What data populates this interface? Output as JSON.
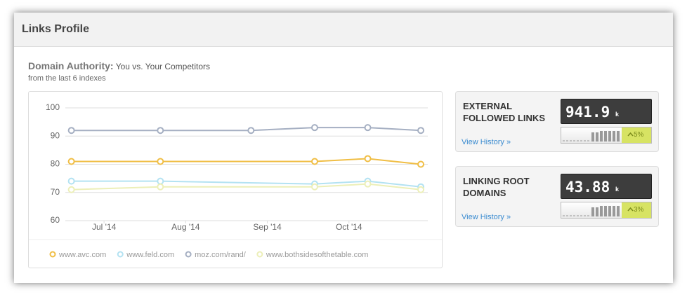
{
  "header": {
    "title": "Links Profile"
  },
  "chart_data": {
    "type": "line",
    "title": "Domain Authority:",
    "title_detail": "You vs. Your Competitors",
    "subtitle": "from the last 6 indexes",
    "xlim": [
      6.5,
      11
    ],
    "xticks": [
      {
        "value": 7,
        "label": "Jul '14"
      },
      {
        "value": 8,
        "label": "Aug '14"
      },
      {
        "value": 9,
        "label": "Sep '14"
      },
      {
        "value": 10,
        "label": "Oct '14"
      }
    ],
    "ylim": [
      60,
      100
    ],
    "yticks": [
      60,
      70,
      80,
      90,
      100
    ],
    "grid": true,
    "series": [
      {
        "name": "www.avc.com",
        "color": "#f0be45",
        "x": [
          6.6,
          7.69,
          9.58,
          10.23,
          10.88
        ],
        "values": [
          81,
          81,
          81,
          82,
          80
        ]
      },
      {
        "name": "www.feld.com",
        "color": "#b3e2f2",
        "x": [
          6.6,
          7.69,
          9.58,
          10.23,
          10.88
        ],
        "values": [
          74,
          74,
          73,
          74,
          72
        ]
      },
      {
        "name": "moz.com/rand/",
        "color": "#a5afc2",
        "x": [
          6.6,
          7.69,
          8.8,
          9.58,
          10.23,
          10.88
        ],
        "values": [
          92,
          92,
          92,
          93,
          93,
          92
        ]
      },
      {
        "name": "www.bothsidesofthetable.com",
        "color": "#ecefb8",
        "x": [
          6.6,
          7.69,
          9.58,
          10.23,
          10.88
        ],
        "values": [
          71,
          72,
          72,
          73,
          71
        ]
      }
    ]
  },
  "metrics": [
    {
      "label": "EXTERNAL FOLLOWED LINKS",
      "value": 941.9,
      "unit": "k",
      "change": "5%",
      "link": "View History »"
    },
    {
      "label": "LINKING ROOT DOMAINS",
      "value": 43.88,
      "unit": "k",
      "change": "3%",
      "link": "View History »"
    }
  ]
}
